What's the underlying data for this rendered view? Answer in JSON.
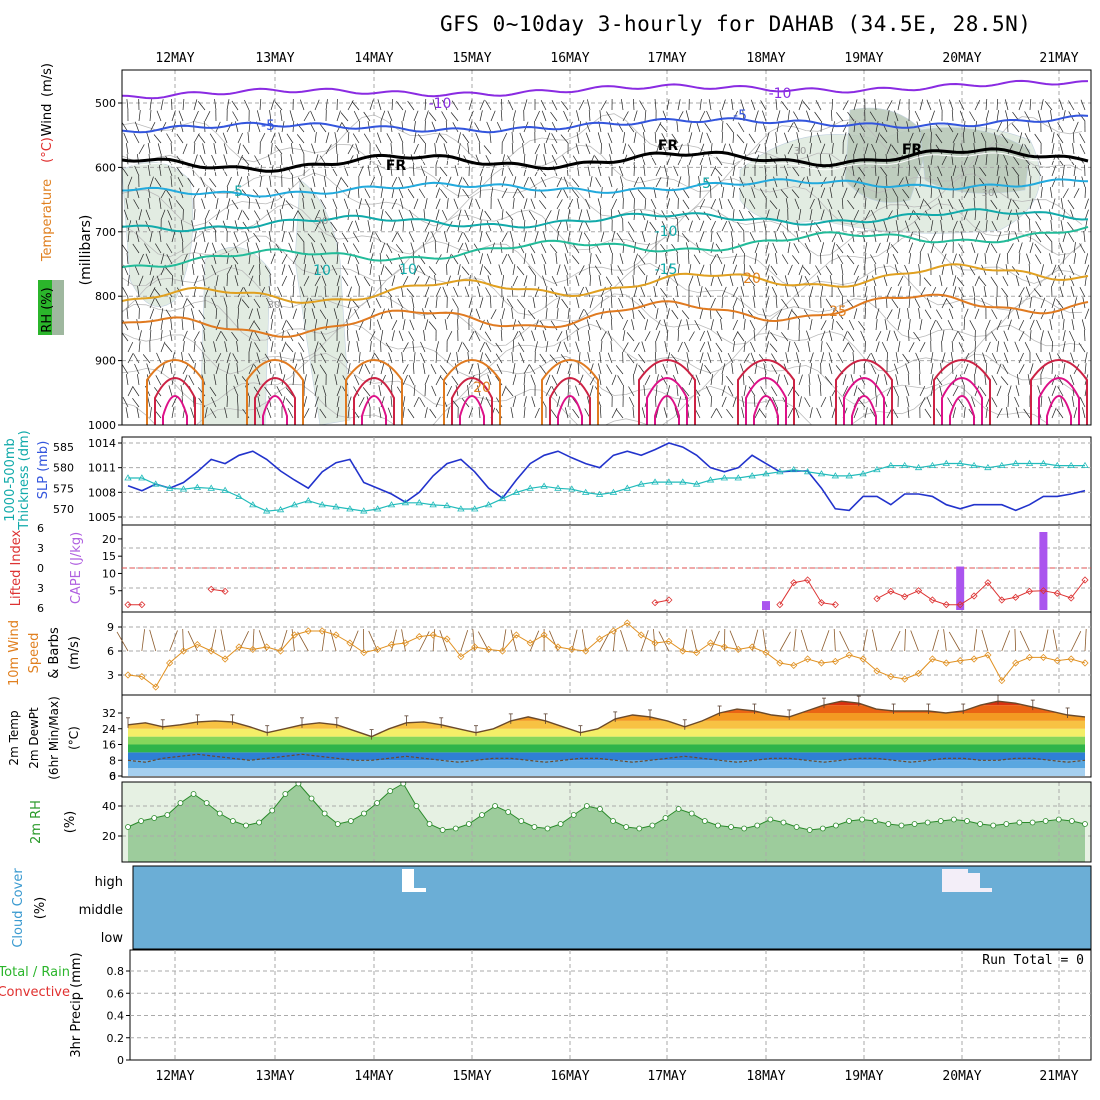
{
  "title": "GFS 0~10day 3-hourly for DAHAB (34.5E, 28.5N)",
  "dates": [
    "12MAY",
    "13MAY",
    "14MAY",
    "15MAY",
    "16MAY",
    "17MAY",
    "18MAY",
    "19MAY",
    "20MAY",
    "21MAY"
  ],
  "colors": {
    "temp_hot": "#e8430f",
    "rh_green": "#2bb52b",
    "slp": "#2233cc",
    "thick": "#22bbbb",
    "cape": "#aa55ee",
    "li": "#dd3333",
    "wind_speed": "#e09020",
    "cloud": "#6baed6"
  },
  "chart_data": [
    {
      "type": "contour",
      "ylabel_parts": [
        "RH (%)",
        "Temperature",
        "(°C)",
        "Wind",
        "(m/s)"
      ],
      "y_axis_title": "(millibars)",
      "y_ticks": [
        500,
        600,
        700,
        800,
        900,
        1000
      ],
      "contour_labels": [
        {
          "text": "-10"
        },
        {
          "text": "-10"
        },
        {
          "text": "-5"
        },
        {
          "text": "-5"
        },
        {
          "text": "FR"
        },
        {
          "text": "FR"
        },
        {
          "text": "FR"
        },
        {
          "text": "-5"
        },
        {
          "text": "-5"
        },
        {
          "text": "-10"
        },
        {
          "text": "-15"
        },
        {
          "text": "10"
        },
        {
          "text": "20"
        },
        {
          "text": "25"
        },
        {
          "text": "20"
        },
        {
          "text": "30"
        },
        {
          "text": "10"
        },
        {
          "text": "30"
        },
        {
          "text": "30"
        },
        {
          "text": "30"
        }
      ]
    },
    {
      "type": "line",
      "ylabel_left": [
        "1000-500mb",
        "Thickness (dm)"
      ],
      "ylabel_right": "SLP (mb)",
      "left_ticks": [
        570,
        575,
        580,
        585
      ],
      "right_ticks": [
        1005,
        1008,
        1011,
        1014
      ],
      "series": [
        {
          "name": "SLP",
          "axis": "right",
          "values": [
            1008.8,
            1008.2,
            1009,
            1008.5,
            1009.2,
            1010.5,
            1012,
            1011.5,
            1012.5,
            1013,
            1012,
            1010.6,
            1009.5,
            1008.5,
            1010.5,
            1011.6,
            1012,
            1009.2,
            1008.5,
            1007.8,
            1006.8,
            1008,
            1010,
            1011.5,
            1012,
            1010.5,
            1008.5,
            1007.3,
            1009.5,
            1011.5,
            1012.5,
            1013,
            1012.2,
            1011.5,
            1011,
            1012.5,
            1013,
            1012.5,
            1013.2,
            1014,
            1013.5,
            1012.5,
            1011,
            1010.5,
            1011,
            1012.5,
            1011.5,
            1010.5,
            1010.6,
            1010.6,
            1008.5,
            1006,
            1005.8,
            1007.5,
            1007.5,
            1006.5,
            1007.8,
            1007.8,
            1007.5,
            1006.5,
            1006,
            1006.5,
            1006.5,
            1006.5,
            1005.8,
            1006.5,
            1007.5,
            1007.5,
            1007.8,
            1008.2
          ]
        },
        {
          "name": "Thickness",
          "axis": "left",
          "values": [
            577.5,
            577.5,
            576,
            575,
            574.8,
            575.2,
            575,
            574.5,
            573,
            571,
            569.5,
            569.8,
            571,
            572,
            571,
            570.5,
            570,
            569.5,
            570,
            571,
            571.5,
            571.5,
            571,
            570.8,
            570,
            570,
            571,
            572.5,
            574,
            575,
            575.5,
            575,
            574.8,
            574,
            573.5,
            574,
            575,
            576,
            576.5,
            576.5,
            576.5,
            576,
            577,
            577.5,
            577.5,
            578,
            578.5,
            579,
            579.5,
            579,
            578.5,
            578,
            578,
            578.5,
            579.5,
            580.5,
            580.5,
            580,
            580.5,
            581,
            581,
            580.5,
            580,
            580.5,
            581,
            581,
            581,
            580.5,
            580.5,
            580.5
          ]
        }
      ]
    },
    {
      "type": "line",
      "ylabel_left": "Lifted Index",
      "ylabel_right": "CAPE (J/kg)",
      "left_ticks": [
        -6,
        -3,
        0,
        3,
        6
      ],
      "right_ticks": [
        5,
        10,
        15,
        20
      ],
      "series": [
        {
          "name": "Lifted Index",
          "axis": "left",
          "values": [
            5.5,
            5.5,
            null,
            null,
            null,
            null,
            3.2,
            3.5,
            null,
            null,
            null,
            null,
            null,
            null,
            null,
            null,
            null,
            null,
            null,
            null,
            null,
            null,
            null,
            null,
            null,
            null,
            null,
            null,
            null,
            null,
            null,
            null,
            null,
            null,
            null,
            null,
            null,
            null,
            5.2,
            4.8,
            null,
            null,
            null,
            null,
            null,
            null,
            null,
            5.5,
            2.2,
            1.8,
            5.2,
            5.5,
            null,
            null,
            4.6,
            3.5,
            4.3,
            3.4,
            4.8,
            5.5,
            5.5,
            4.2,
            2.2,
            4.8,
            4.4,
            3.5,
            3.4,
            3.8,
            4.5,
            1.8
          ]
        },
        {
          "name": "CAPE",
          "axis": "right",
          "bars": [
            {
              "i": 46,
              "value": 2
            },
            {
              "i": 60,
              "value": 12
            },
            {
              "i": 66,
              "value": 22
            }
          ]
        }
      ]
    },
    {
      "type": "line",
      "ylabel_left": [
        "10m Wind",
        "Speed",
        "& Barbs",
        "(m/s)"
      ],
      "y_ticks": [
        3,
        6,
        9
      ],
      "values": [
        3,
        2.8,
        1.5,
        4.5,
        6,
        6.8,
        6,
        5,
        6.5,
        6.2,
        6.5,
        6,
        8,
        8.5,
        8.5,
        8,
        7,
        5.8,
        6.2,
        6.8,
        7,
        7.8,
        8,
        7.5,
        5.3,
        6.5,
        6.2,
        6,
        8,
        7,
        8,
        6.5,
        6.2,
        6,
        7.5,
        8.5,
        9.5,
        8,
        7,
        7.2,
        6,
        5.8,
        7,
        6.5,
        6.2,
        6.5,
        5.8,
        4.5,
        4.2,
        5,
        4.5,
        4.7,
        5.5,
        5,
        3.5,
        2.8,
        2.5,
        3.2,
        5,
        4.5,
        4.8,
        5,
        5.5,
        2.3,
        4.5,
        5.2,
        5.2,
        4.8,
        5,
        4.5
      ]
    },
    {
      "type": "area",
      "ylabel_left": [
        "2m Temp",
        "2m DewPt",
        "(6hr Min/Max)",
        "(°C)"
      ],
      "y_ticks": [
        0,
        8,
        16,
        24,
        32
      ],
      "temp": [
        26,
        27,
        25,
        26,
        27.5,
        28,
        27.5,
        25,
        22,
        24,
        26,
        27,
        26,
        23,
        20,
        24,
        27,
        27.5,
        26,
        24,
        22,
        24,
        28,
        30,
        28,
        25,
        22,
        24,
        29,
        31,
        30,
        28,
        25,
        28,
        32,
        34,
        33,
        31,
        30,
        33,
        36,
        38,
        37,
        34,
        33,
        33,
        33,
        32,
        33,
        36,
        38,
        37,
        35,
        33,
        31,
        30
      ],
      "dew": [
        8,
        7,
        9,
        10,
        11,
        10,
        9,
        8,
        9,
        10,
        11,
        10,
        9,
        8,
        8,
        9,
        10,
        9,
        8,
        7,
        8,
        9,
        9,
        8,
        7,
        8,
        9,
        9,
        8,
        7,
        8,
        9,
        10,
        9,
        8,
        7,
        8,
        9,
        9,
        8,
        7,
        8,
        9,
        9,
        8,
        7,
        8,
        9,
        9,
        8,
        8,
        9,
        9,
        8,
        7,
        8
      ]
    },
    {
      "type": "area",
      "ylabel_left": "2m RH",
      "ylabel_right": "(%)",
      "y_ticks": [
        20,
        40
      ],
      "values": [
        26,
        30,
        32,
        34,
        42,
        48,
        42,
        35,
        30,
        27,
        29,
        37,
        48,
        55,
        45,
        35,
        28,
        30,
        35,
        42,
        50,
        55,
        40,
        28,
        24,
        25,
        28,
        34,
        40,
        36,
        30,
        26,
        25,
        28,
        34,
        40,
        38,
        30,
        26,
        25,
        27,
        32,
        38,
        35,
        30,
        27,
        26,
        25,
        27,
        31,
        29,
        26,
        24,
        25,
        27,
        30,
        31,
        30,
        28,
        27,
        28,
        29,
        30,
        31,
        30,
        28,
        27,
        28,
        29,
        29,
        30,
        31,
        30,
        28
      ]
    },
    {
      "type": "heatmap",
      "ylabel_left": [
        "Cloud Cover",
        "(%)"
      ],
      "rows": [
        "high",
        "middle",
        "low"
      ]
    },
    {
      "type": "bar",
      "ylabel_left": [
        "Total / Rain",
        "Convective",
        "3hr Precip (mm)"
      ],
      "y_ticks": [
        0,
        0.2,
        0.4,
        0.6,
        0.8
      ],
      "annotation": "Run Total = 0"
    }
  ]
}
